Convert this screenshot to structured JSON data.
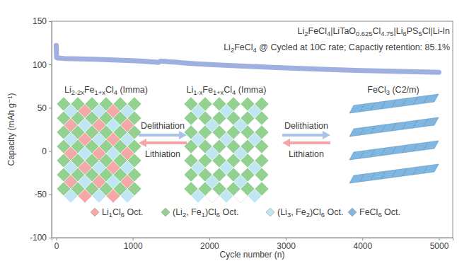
{
  "chart_data": {
    "type": "line",
    "x_label": "Cycle number (n)",
    "y_label": "Capacity (mAh g⁻¹)",
    "xlim": [
      -60,
      5180
    ],
    "ylim": [
      -100,
      150
    ],
    "xticks": [
      0,
      1000,
      2000,
      3000,
      4000,
      5000
    ],
    "yticks": [
      -100,
      -50,
      0,
      50,
      100,
      150
    ],
    "grid": false,
    "x": [
      0,
      5,
      20,
      100,
      300,
      500,
      800,
      1000,
      1200,
      1340,
      1360,
      1500,
      1800,
      2000,
      2500,
      3000,
      3500,
      4000,
      4500,
      5000
    ],
    "series": [
      {
        "color": "#9eafe0",
        "line_style": "solid",
        "values": [
          122,
          108,
          107.5,
          107,
          106.5,
          106,
          105,
          104.5,
          103.5,
          102.5,
          104,
          103,
          101,
          100,
          98,
          96,
          94.5,
          93,
          92,
          91
        ]
      }
    ],
    "annotations": [
      "Li2FeCl4|LiTaO0.625Cl4.75|Li6PS5Cl|Li-In",
      "Li2FeCl4 @ Cycled at 10C rate; Capactiy retention: 85.1%"
    ],
    "structure_labels": [
      "Li2-2xFe1+xCl4 (Imma)",
      "Li1-xFe1+xCl4 (Imma)",
      "FeCl3 (C2/m)"
    ],
    "transitions": [
      {
        "forward": "Delithiation",
        "backward": "Lithiation"
      },
      {
        "forward": "Delithiation",
        "backward": "Lithiation"
      }
    ],
    "octahedra": [
      {
        "name": "Li1Cl6 Oct.",
        "color": "#f4a9a8"
      },
      {
        "name": "(Li2, Fe1)Cl6 Oct.",
        "color": "#92d18f"
      },
      {
        "name": "(Li3, Fe2)Cl6 Oct.",
        "color": "#bfe6f2"
      },
      {
        "name": "FeCl6 Oct.",
        "color": "#7fb7e2"
      }
    ]
  }
}
